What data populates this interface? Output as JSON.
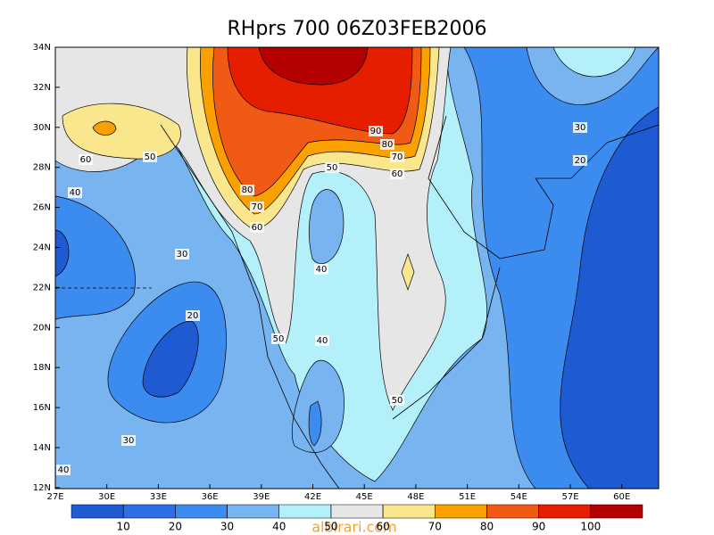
{
  "title": "RHprs 700 06Z03FEB2006",
  "lon_labels": [
    "27E",
    "30E",
    "33E",
    "36E",
    "39E",
    "42E",
    "45E",
    "48E",
    "51E",
    "54E",
    "57E",
    "60E"
  ],
  "lat_labels": [
    "34N",
    "32N",
    "30N",
    "28N",
    "26N",
    "24N",
    "22N",
    "20N",
    "18N",
    "16N",
    "14N",
    "12N"
  ],
  "contour_labels": [
    90,
    80,
    70,
    60,
    50,
    50,
    60,
    40,
    80,
    70,
    60,
    40,
    30,
    20,
    50,
    40,
    30,
    20,
    30,
    50,
    40
  ],
  "colorbar": {
    "levels": [
      10,
      20,
      30,
      40,
      50,
      60,
      70,
      80,
      90,
      100
    ],
    "colors": [
      "#1e5ad2",
      "#2d6ee6",
      "#3c8cf0",
      "#78b4f0",
      "#b4f0fa",
      "#e6e6e6",
      "#fae68c",
      "#faa000",
      "#f05a14",
      "#e61e00",
      "#b40000"
    ]
  },
  "watermark": "albirari.com"
}
